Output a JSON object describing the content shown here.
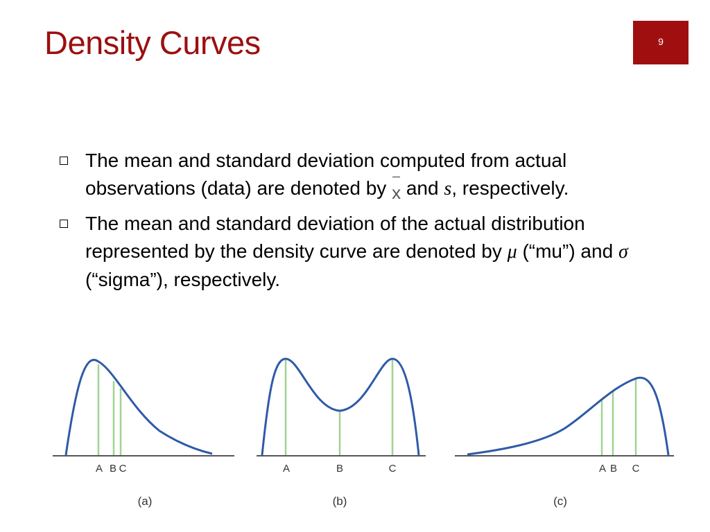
{
  "slide": {
    "title": "Density Curves",
    "page_number": "9"
  },
  "bullets": [
    {
      "part1": "The mean and standard deviation computed from actual observations (data) are denoted by",
      "sym1": "x",
      "part2": "and",
      "sym2": "s",
      "part3": ", respectively."
    },
    {
      "part1": "The mean and standard deviation of the actual distribution represented by the density curve are denoted by",
      "sym1": "μ",
      "part2": "(“mu”) and",
      "sym2": "σ",
      "part3": "(“sigma”), respectively."
    }
  ],
  "figure": {
    "panels": [
      {
        "label": "(a)",
        "markers": [
          "A",
          "B",
          "C"
        ]
      },
      {
        "label": "(b)",
        "markers": [
          "A",
          "B",
          "C"
        ]
      },
      {
        "label": "(c)",
        "markers": [
          "A",
          "B",
          "C"
        ]
      }
    ],
    "colors": {
      "curve": "#2f5aa8",
      "marker_line": "#9fd48f",
      "axis": "#555555"
    }
  }
}
